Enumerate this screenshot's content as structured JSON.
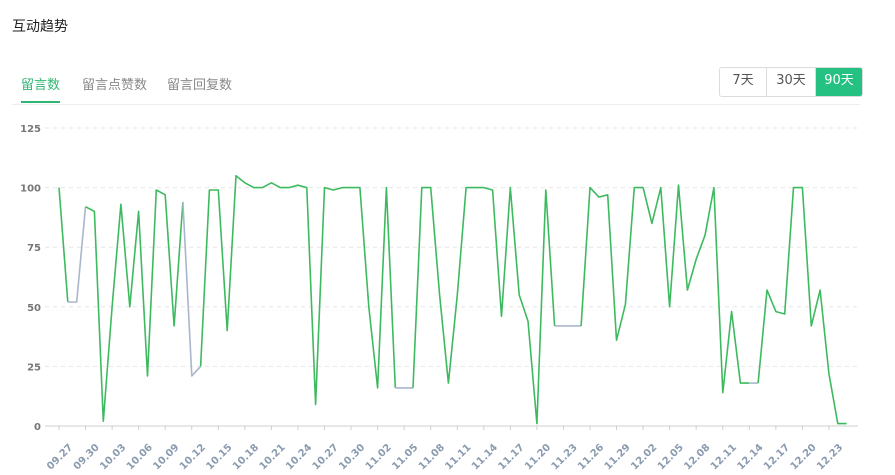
{
  "header": {
    "title": "互动趋势"
  },
  "tabs": [
    {
      "label": "留言数",
      "active": true
    },
    {
      "label": "留言点赞数",
      "active": false
    },
    {
      "label": "留言回复数",
      "active": false
    }
  ],
  "range": {
    "options": [
      "7天",
      "30天",
      "90天"
    ],
    "selected": "90天"
  },
  "colors": {
    "accent": "#25c182",
    "line": "#3dba5f",
    "gap_line": "#a9b6cc"
  },
  "chart_data": {
    "type": "line",
    "ylim": [
      0,
      125
    ],
    "yticks": [
      0,
      25,
      50,
      75,
      100,
      125
    ],
    "xtick_labels": [
      "09.27",
      "09.30",
      "10.03",
      "10.06",
      "10.09",
      "10.12",
      "10.15",
      "10.18",
      "10.21",
      "10.24",
      "10.27",
      "10.30",
      "11.02",
      "11.05",
      "11.08",
      "11.11",
      "11.14",
      "11.17",
      "11.20",
      "11.23",
      "11.26",
      "11.29",
      "12.02",
      "12.05",
      "12.08",
      "12.11",
      "12.14",
      "12.17",
      "12.20",
      "12.23"
    ],
    "series": [
      {
        "values": [
          100,
          52,
          52,
          92,
          90,
          2,
          50,
          93,
          50,
          90,
          21,
          99,
          97,
          42,
          94,
          21,
          25,
          99,
          99,
          40,
          105,
          102,
          100,
          100,
          102,
          100,
          100,
          101,
          100,
          9,
          100,
          99,
          100,
          100,
          100,
          50,
          16,
          100,
          16,
          16,
          16,
          100,
          100,
          55,
          18,
          55,
          100,
          100,
          100,
          99,
          46,
          100,
          55,
          44,
          1,
          99,
          42,
          42,
          42,
          42,
          100,
          96,
          97,
          36,
          51,
          100,
          100,
          85,
          100,
          50,
          101,
          57,
          70,
          80,
          100,
          14,
          48,
          18,
          18,
          18,
          57,
          48,
          47,
          100,
          100,
          42,
          57,
          22,
          1,
          1
        ],
        "gap_segments": [
          [
            1,
            3
          ],
          [
            14,
            16
          ],
          [
            38,
            40
          ],
          [
            56,
            59
          ],
          [
            78,
            79
          ]
        ]
      }
    ]
  }
}
